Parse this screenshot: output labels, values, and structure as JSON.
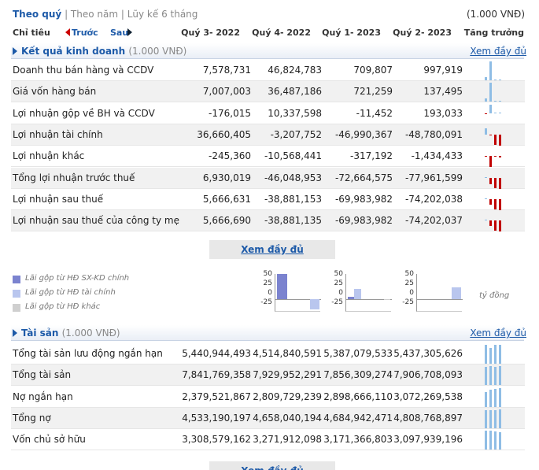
{
  "nav": {
    "by_quarter": "Theo quý",
    "separator1": " | ",
    "by_year": "Theo năm",
    "separator2": " | ",
    "ytd": "Lũy kế 6 tháng",
    "unit": "(1.000 VNĐ)"
  },
  "columns": {
    "indicator": "Chỉ tiêu",
    "prev": "Trước",
    "next": "Sau",
    "q1": "Quý 3- 2022",
    "q2": "Quý 4- 2022",
    "q3": "Quý 1- 2023",
    "q4": "Quý 2- 2023",
    "growth": "Tăng trưởng"
  },
  "kqkd": {
    "title": "Kết quả kinh doanh",
    "unit": "(1.000 VNĐ)",
    "more": "Xem đầy đủ",
    "rows": [
      {
        "label": "Doanh thu bán hàng và CCDV",
        "values": [
          "7,578,731",
          "46,824,783",
          "709,807",
          "997,919"
        ],
        "spark": [
          0.16,
          1.0,
          0.02,
          0.02
        ]
      },
      {
        "label": "Giá vốn hàng bán",
        "values": [
          "7,007,003",
          "36,487,186",
          "721,259",
          "137,495"
        ],
        "spark": [
          0.19,
          1.0,
          0.02,
          0.0
        ]
      },
      {
        "label": "Lợi nhuận gộp về BH và CCDV",
        "values": [
          "-176,015",
          "10,337,598",
          "-11,452",
          "193,033"
        ],
        "spark": [
          -0.02,
          1.0,
          0.0,
          0.02
        ]
      },
      {
        "label": "Lợi nhuận tài chính",
        "values": [
          "36,660,405",
          "-3,207,752",
          "-46,990,367",
          "-48,780,091"
        ],
        "spark": [
          0.75,
          -0.07,
          -0.96,
          -1.0
        ]
      },
      {
        "label": "Lợi nhuận khác",
        "values": [
          "-245,360",
          "-10,568,441",
          "-317,192",
          "-1,434,433"
        ],
        "spark": [
          -0.02,
          -1.0,
          -0.03,
          -0.14
        ]
      },
      {
        "label": "Tổng lợi nhuận trước thuế",
        "values": [
          "6,930,019",
          "-46,048,953",
          "-72,664,575",
          "-77,961,599"
        ],
        "spark": [
          0.09,
          -0.59,
          -0.93,
          -1.0
        ]
      },
      {
        "label": "Lợi nhuận sau thuế",
        "values": [
          "5,666,631",
          "-38,881,153",
          "-69,983,982",
          "-74,202,038"
        ],
        "spark": [
          0.08,
          -0.52,
          -0.94,
          -1.0
        ]
      },
      {
        "label": "Lợi nhuận sau thuế của công ty mẹ",
        "values": [
          "5,666,690",
          "-38,881,135",
          "-69,983,982",
          "-74,202,037"
        ],
        "spark": [
          0.08,
          -0.52,
          -0.94,
          -1.0
        ]
      }
    ],
    "more_button": "Xem đầy đủ"
  },
  "legend": {
    "items": [
      {
        "label": "Lãi gộp từ HĐ SX-KD chính",
        "color": "#7b83cf"
      },
      {
        "label": "Lãi gộp từ HĐ tài chính",
        "color": "#b9c6ee"
      },
      {
        "label": "Lãi gộp từ HĐ khác",
        "color": "#cfcfcf"
      }
    ],
    "unit": "tỷ đồng"
  },
  "mini_charts": {
    "ticks": [
      "50",
      "25",
      "0",
      "-25"
    ],
    "ylim": [
      -25,
      50
    ],
    "charts": [
      {
        "series": [
          {
            "name": "Lãi gộp từ HĐ SX-KD chính",
            "color": "#7b83cf",
            "values": [
              50,
              0
            ]
          },
          {
            "name": "Lãi gộp từ HĐ tài chính",
            "color": "#b9c6ee",
            "values": [
              0,
              -20
            ]
          }
        ]
      },
      {
        "series": [
          {
            "name": "Lãi gộp từ HĐ SX-KD chính",
            "color": "#7b83cf",
            "values": [
              4,
              0
            ]
          },
          {
            "name": "Lãi gộp từ HĐ tài chính",
            "color": "#b9c6ee",
            "values": [
              20,
              0
            ]
          },
          {
            "name": "Lãi gộp từ HĐ khác",
            "color": "#cfcfcf",
            "values": [
              0,
              -1
            ]
          }
        ]
      },
      {
        "series": [
          {
            "name": "Lãi gộp từ HĐ SX-KD chính",
            "color": "#7b83cf",
            "values": [
              0,
              0
            ]
          },
          {
            "name": "Lãi gộp từ HĐ tài chính",
            "color": "#b9c6ee",
            "values": [
              0,
              23
            ]
          }
        ]
      }
    ]
  },
  "taisan": {
    "title": "Tài sản",
    "unit": "(1.000 VNĐ)",
    "more": "Xem đầy đủ",
    "rows": [
      {
        "label": "Tổng tài sản lưu động ngắn hạn",
        "values": [
          "5,440,944,493",
          "4,514,840,591",
          "5,387,079,533",
          "5,437,305,626"
        ],
        "spark": [
          1.0,
          0.83,
          0.99,
          1.0
        ]
      },
      {
        "label": "Tổng tài sản",
        "values": [
          "7,841,769,358",
          "7,929,952,291",
          "7,856,309,274",
          "7,906,708,093"
        ],
        "spark": [
          0.99,
          1.0,
          0.99,
          1.0
        ]
      },
      {
        "label": "Nợ ngắn hạn",
        "values": [
          "2,379,521,867",
          "2,809,729,239",
          "2,898,666,110",
          "3,072,269,538"
        ],
        "spark": [
          0.77,
          0.91,
          0.94,
          1.0
        ]
      },
      {
        "label": "Tổng nợ",
        "values": [
          "4,533,190,197",
          "4,658,040,194",
          "4,684,942,471",
          "4,808,768,897"
        ],
        "spark": [
          0.94,
          0.97,
          0.97,
          1.0
        ]
      },
      {
        "label": "Vốn chủ sở hữu",
        "values": [
          "3,308,579,162",
          "3,271,912,098",
          "3,171,366,803",
          "3,097,939,196"
        ],
        "spark": [
          1.0,
          0.99,
          0.96,
          0.94
        ]
      }
    ],
    "more_button": "Xem đầy đủ"
  },
  "colors": {
    "link": "#1d5aa8",
    "positive": "#8fbde5",
    "negative": "#c00000"
  }
}
